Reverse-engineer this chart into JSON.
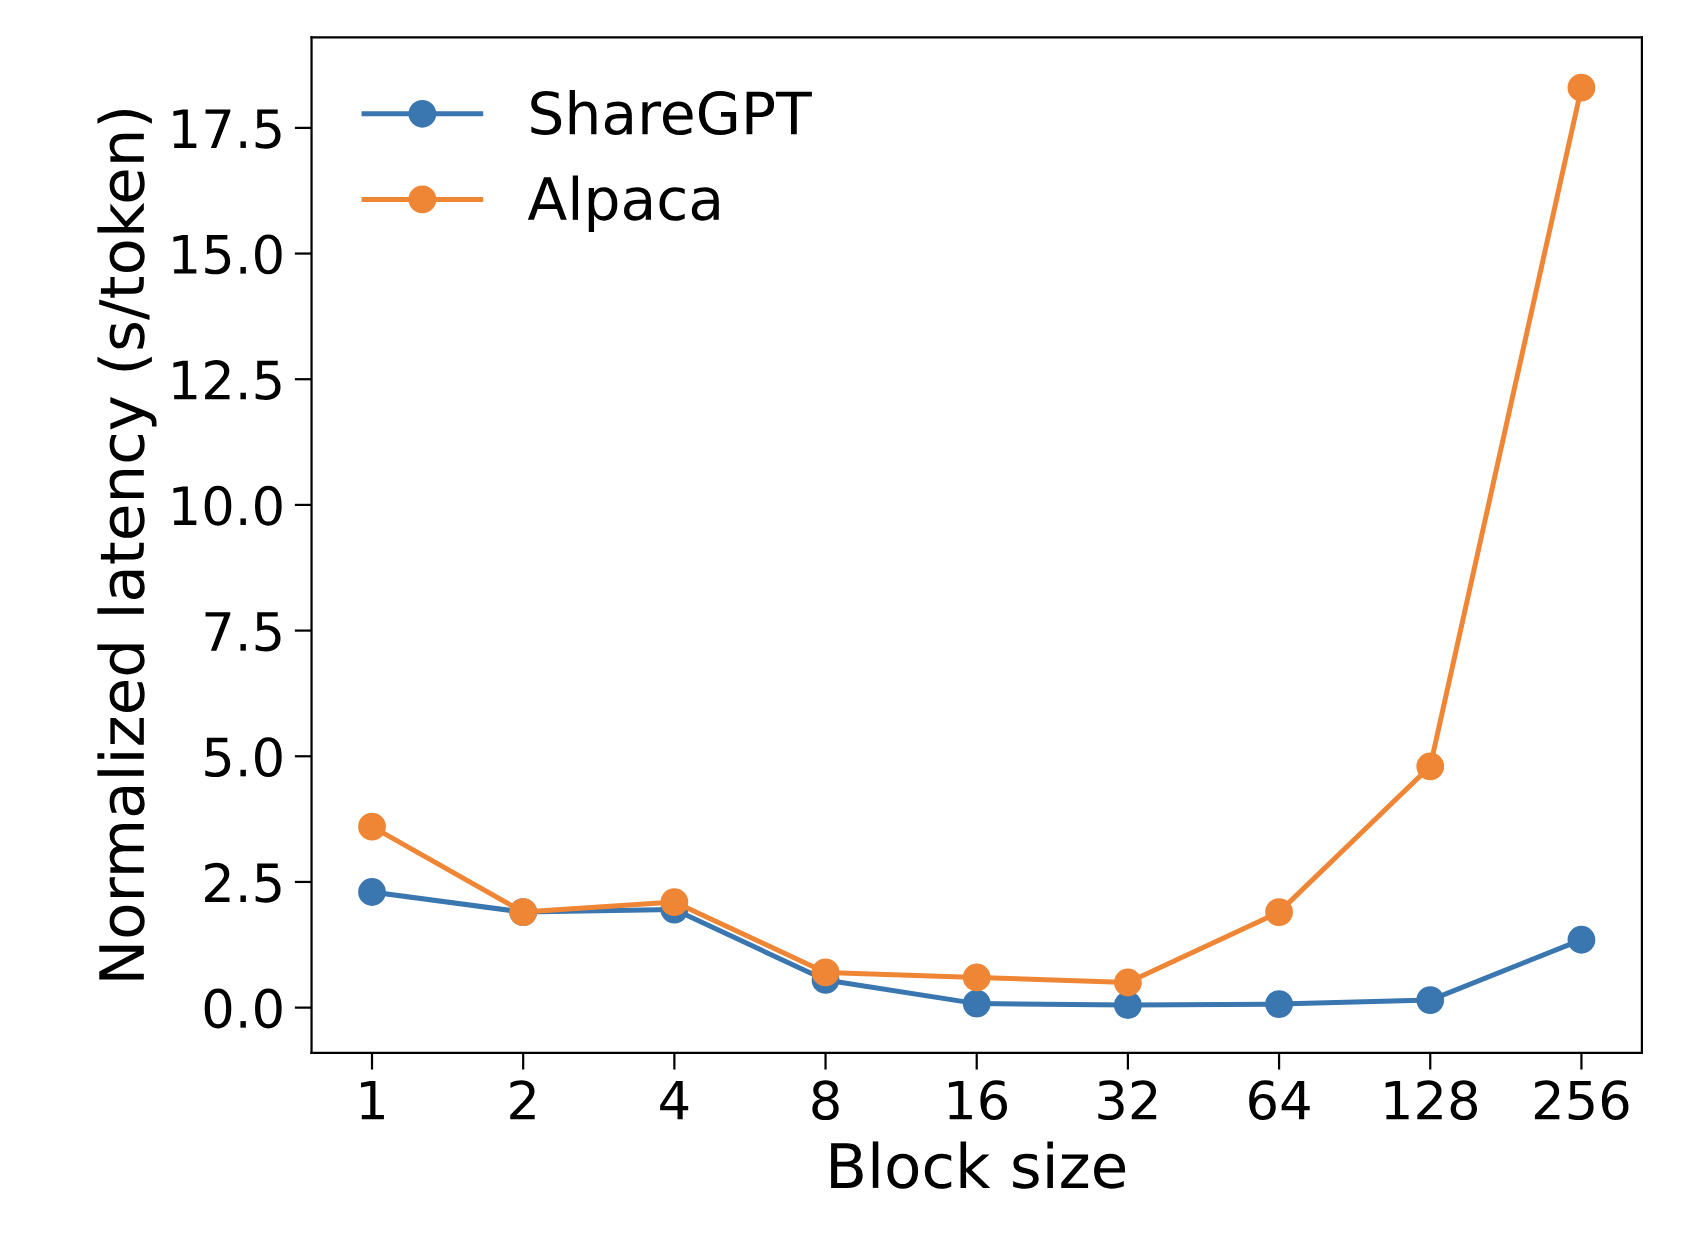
{
  "chart_data": {
    "type": "line",
    "xlabel": "Block size",
    "ylabel": "Normalized latency (s/token)",
    "categories": [
      "1",
      "2",
      "4",
      "8",
      "16",
      "32",
      "64",
      "128",
      "256"
    ],
    "series": [
      {
        "name": "ShareGPT",
        "color": "#3a76af",
        "values": [
          2.3,
          1.9,
          1.95,
          0.55,
          0.08,
          0.05,
          0.07,
          0.15,
          1.35
        ]
      },
      {
        "name": "Alpaca",
        "color": "#ef8636",
        "values": [
          3.6,
          1.9,
          2.1,
          0.7,
          0.6,
          0.5,
          1.9,
          4.8,
          18.3
        ]
      }
    ],
    "ylim": [
      -0.9,
      19.3
    ],
    "yticks": [
      {
        "value": 0,
        "label": "0.0"
      },
      2.5,
      {
        "value": 5,
        "label": "5.0"
      },
      7.5,
      {
        "value": 10,
        "label": "10.0"
      },
      12.5,
      {
        "value": 15,
        "label": "15.0"
      },
      17.5
    ],
    "marker": "circle",
    "line_style": "solid",
    "legend": "top left",
    "grid": false
  }
}
